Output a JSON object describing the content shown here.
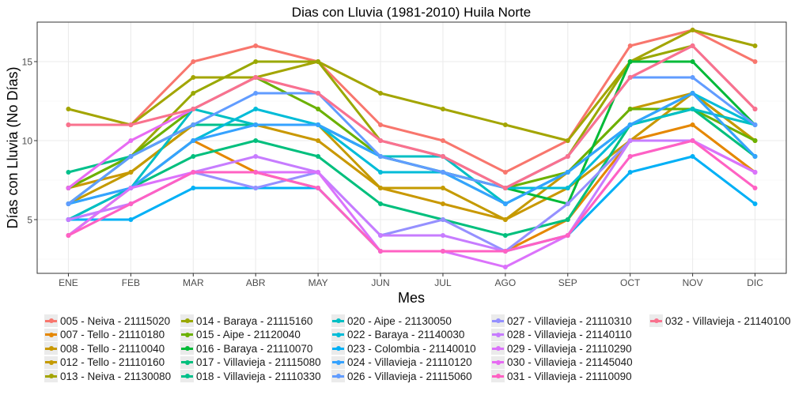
{
  "chart_data": {
    "type": "line",
    "title": "Dias con Lluvia (1981-2010)  Huila Norte",
    "xlabel": "Mes",
    "ylabel": "Días con Lluvia (No Días)",
    "categories": [
      "ENE",
      "FEB",
      "MAR",
      "ABR",
      "MAY",
      "JUN",
      "JUL",
      "AGO",
      "SEP",
      "OCT",
      "NOV",
      "DIC"
    ],
    "yticks": [
      5,
      10,
      15
    ],
    "ylim": [
      1.6,
      17.5
    ],
    "grid": true,
    "legend_position": "bottom",
    "series": [
      {
        "name": "005 - Neiva - 21115020",
        "color": "#F8766D",
        "values": [
          11,
          11,
          15,
          16,
          15,
          11,
          10,
          8,
          10,
          16,
          17,
          15
        ]
      },
      {
        "name": "007 - Tello - 21110180",
        "color": "#E58700",
        "values": [
          4,
          7,
          10,
          8,
          7,
          3,
          3,
          3,
          5,
          10,
          11,
          8
        ]
      },
      {
        "name": "008 - Tello - 21110040",
        "color": "#C99800",
        "values": [
          7,
          8,
          11,
          11,
          10,
          7,
          6,
          5,
          7,
          10,
          13,
          10
        ]
      },
      {
        "name": "012 - Tello - 21110160",
        "color": "#C49A00",
        "values": [
          6,
          8,
          11,
          11,
          11,
          7,
          7,
          5,
          8,
          12,
          13,
          10
        ]
      },
      {
        "name": "013 - Neiva - 21130080",
        "color": "#A3A500",
        "values": [
          12,
          11,
          14,
          14,
          15,
          13,
          12,
          11,
          10,
          15,
          17,
          16
        ]
      },
      {
        "name": "014 - Baraya - 21115160",
        "color": "#99A800",
        "values": [
          7,
          9,
          13,
          15,
          15,
          10,
          9,
          7,
          9,
          15,
          16,
          12
        ]
      },
      {
        "name": "015 - Aipe - 21120040",
        "color": "#6BB100",
        "values": [
          7,
          9,
          12,
          14,
          12,
          9,
          8,
          7,
          8,
          12,
          12,
          10
        ]
      },
      {
        "name": "016 - Baraya - 21110070",
        "color": "#00BA38",
        "values": [
          6,
          9,
          11,
          11,
          11,
          9,
          8,
          7,
          6,
          15,
          15,
          11
        ]
      },
      {
        "name": "017 - Villavieja - 21115080",
        "color": "#00BF7D",
        "values": [
          5,
          7,
          9,
          10,
          9,
          6,
          5,
          4,
          5,
          11,
          12,
          9
        ]
      },
      {
        "name": "018 - Villavieja - 21110330",
        "color": "#00C08B",
        "values": [
          8,
          9,
          11,
          11,
          11,
          9,
          8,
          6,
          8,
          11,
          13,
          9
        ]
      },
      {
        "name": "020 - Aipe - 21130050",
        "color": "#00BFC4",
        "values": [
          5,
          7,
          12,
          11,
          11,
          9,
          9,
          6,
          8,
          11,
          12,
          11
        ]
      },
      {
        "name": "022 - Baraya - 21140030",
        "color": "#00BCD8",
        "values": [
          6,
          7,
          10,
          12,
          11,
          8,
          8,
          7,
          7,
          11,
          13,
          11
        ]
      },
      {
        "name": "023 - Colombia - 21140010",
        "color": "#00B0F6",
        "values": [
          5,
          5,
          7,
          7,
          7,
          3,
          3,
          3,
          4,
          8,
          9,
          6
        ]
      },
      {
        "name": "024 - Villavieja - 21110120",
        "color": "#35A2FF",
        "values": [
          6,
          7,
          10,
          11,
          11,
          9,
          8,
          6,
          8,
          11,
          13,
          9
        ]
      },
      {
        "name": "026 - Villavieja - 21115060",
        "color": "#619CFF",
        "values": [
          6,
          9,
          11,
          13,
          13,
          9,
          8,
          7,
          9,
          14,
          14,
          11
        ]
      },
      {
        "name": "027 - Villavieja - 21110310",
        "color": "#9590FF",
        "values": [
          5,
          6,
          8,
          7,
          8,
          4,
          5,
          3,
          6,
          10,
          10,
          8
        ]
      },
      {
        "name": "028 - Villavieja - 21140110",
        "color": "#C77CFF",
        "values": [
          5,
          6,
          8,
          9,
          8,
          4,
          4,
          3,
          4,
          10,
          10,
          8
        ]
      },
      {
        "name": "029 - Villavieja - 21110290",
        "color": "#DB72FB",
        "values": [
          4,
          7,
          8,
          8,
          8,
          3,
          3,
          2,
          4,
          9,
          10,
          8
        ]
      },
      {
        "name": "030 - Villavieja - 21145040",
        "color": "#E76BF3",
        "values": [
          7,
          10,
          12,
          14,
          13,
          10,
          9,
          7,
          9,
          14,
          16,
          12
        ]
      },
      {
        "name": "031 - Villavieja - 21110090",
        "color": "#FF61C3",
        "values": [
          4,
          6,
          8,
          8,
          7,
          3,
          3,
          3,
          4,
          9,
          10,
          7
        ]
      },
      {
        "name": "032 - Villavieja - 21140100",
        "color": "#F9728E",
        "values": [
          11,
          11,
          12,
          14,
          13,
          10,
          9,
          7,
          9,
          14,
          16,
          12
        ]
      }
    ]
  }
}
